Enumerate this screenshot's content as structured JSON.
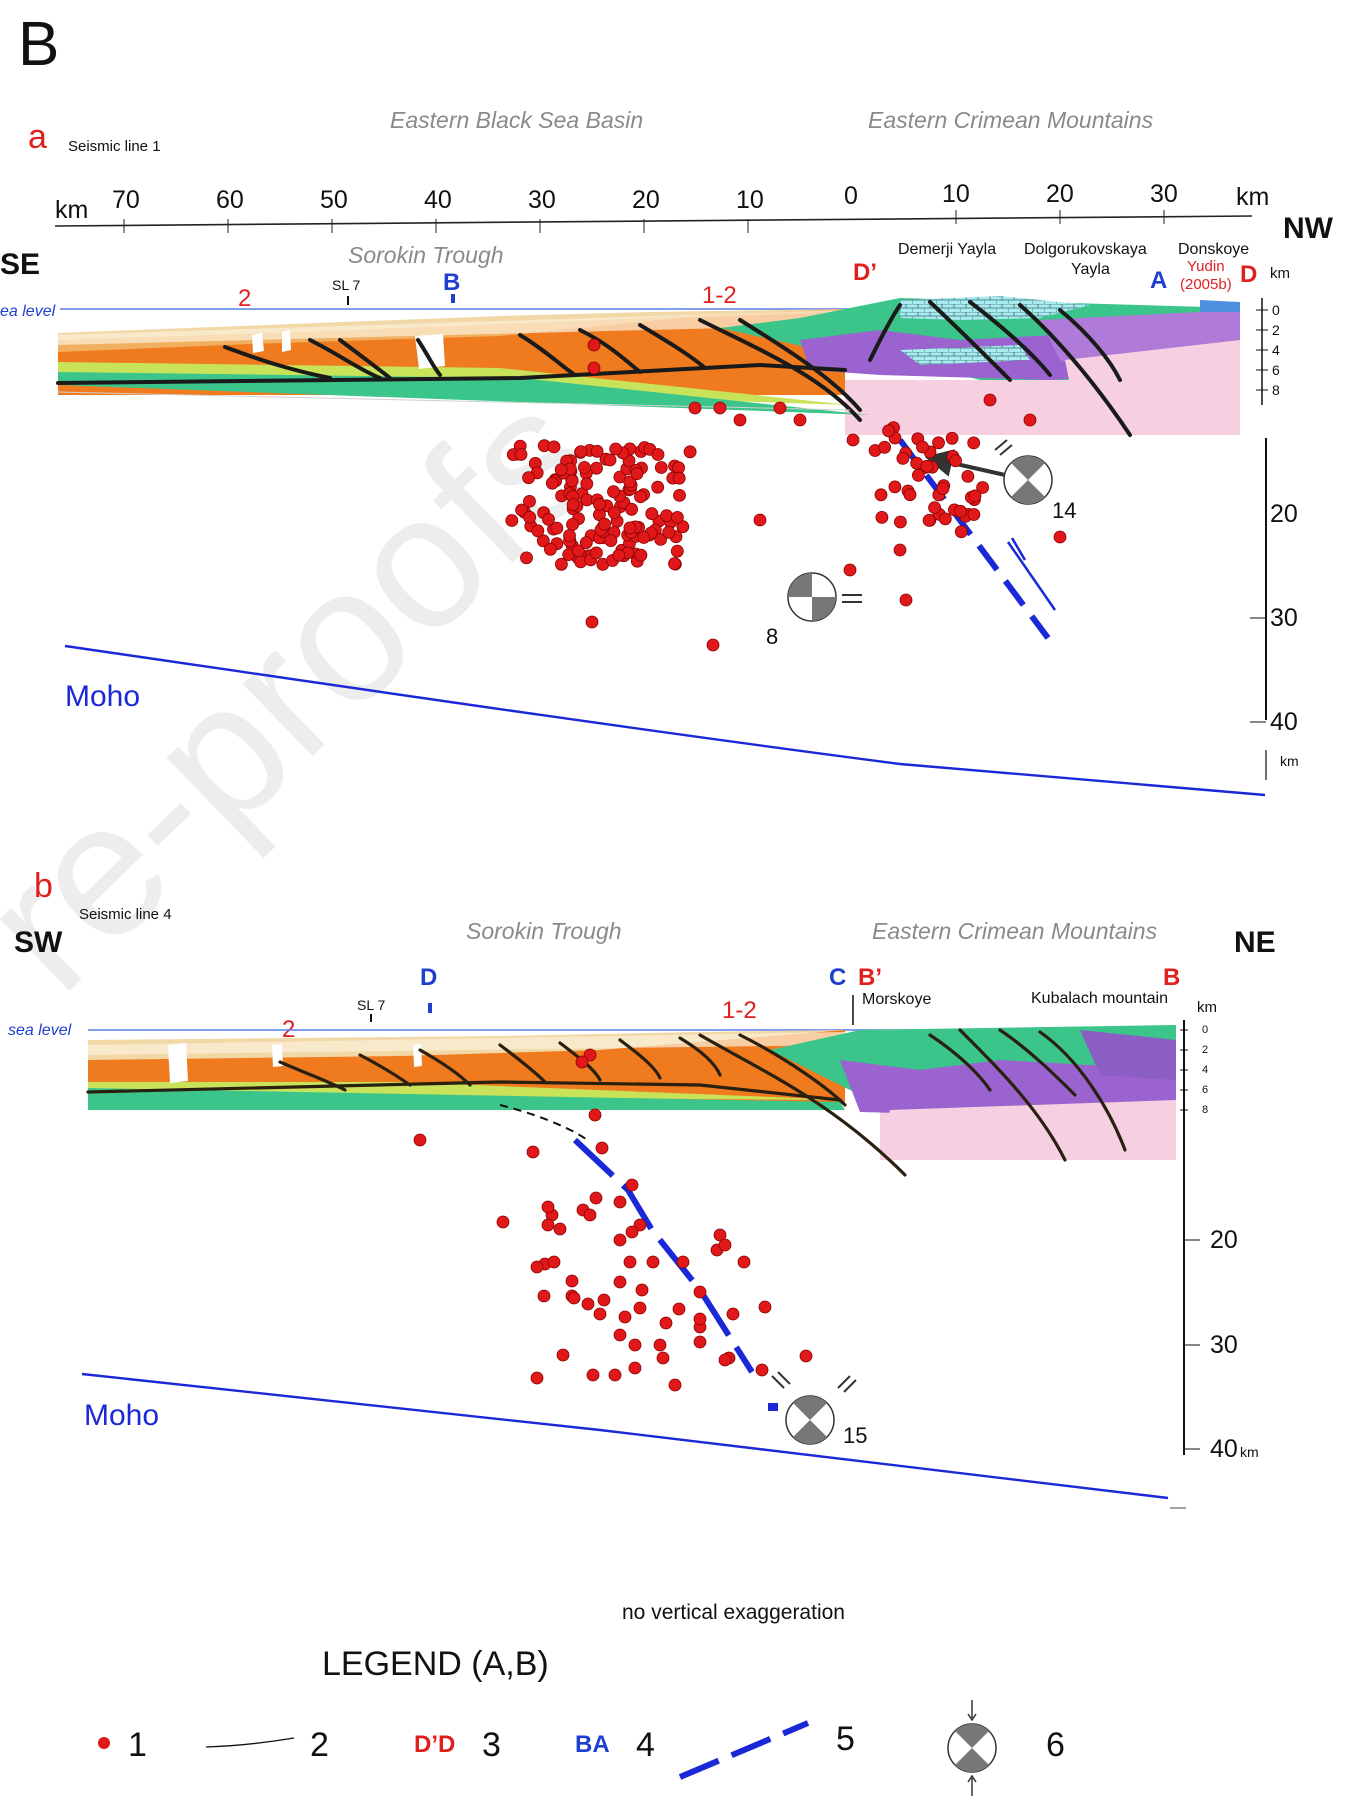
{
  "figure_letter": "B",
  "watermark": "re-proofs",
  "panel_a": {
    "letter": "a",
    "seismic_line": "Seismic line 1",
    "region_left": "Eastern Black Sea Basin",
    "region_right": "Eastern Crimean Mountains",
    "dir_left": "SE",
    "dir_right": "NW",
    "km_label": "km",
    "km_label_right": "km",
    "ticks_left": [
      "70",
      "60",
      "50",
      "40",
      "30",
      "20",
      "10"
    ],
    "tick_zero": "0",
    "ticks_right": [
      "10",
      "20",
      "30"
    ],
    "sorokin": "Sorokin Trough",
    "sl7": "SL 7",
    "mark_b": "B",
    "mark_2": "2",
    "mark_12": "1-2",
    "mark_d1": "D’",
    "demerji": "Demerji Yayla",
    "dolgor_1": "Dolgorukovskaya",
    "dolgor_2": "Yayla",
    "donskoye": "Donskoye",
    "yudin_1": "Yudin",
    "yudin_2": "(2005b)",
    "mark_a": "A",
    "mark_d": "D",
    "km_small": "km",
    "sea_level": "ea level",
    "depth_small": [
      "0",
      "2",
      "4",
      "6",
      "8"
    ],
    "depth_large": [
      "20",
      "30",
      "40"
    ],
    "depth_km_bottom": "km",
    "moho": "Moho",
    "mech_8": "8",
    "mech_14": "14"
  },
  "panel_b": {
    "letter": "b",
    "seismic_line": "Seismic line 4",
    "dir_left": "SW",
    "dir_right": "NE",
    "sorokin": "Sorokin Trough",
    "region_right": "Eastern Crimean Mountains",
    "mark_d": "D",
    "sl7": "SL 7",
    "mark_2": "2",
    "mark_12": "1-2",
    "mark_c": "C",
    "mark_b1": "B’",
    "mark_b": "B",
    "morskoye": "Morskoye",
    "kubalach": "Kubalach mountain",
    "km_small": "km",
    "sea_level": "sea level",
    "depth_small": [
      "0",
      "2",
      "4",
      "6",
      "8"
    ],
    "depth_large": [
      "20",
      "30"
    ],
    "depth_40": "40",
    "depth_40_unit": "km",
    "moho": "Moho",
    "mech_15": "15"
  },
  "note": "no vertical exaggeration",
  "legend": {
    "title": "LEGEND (A,B)",
    "n1": "1",
    "n2": "2",
    "dd": "D’D",
    "n3": "3",
    "ba": "BA",
    "n4": "4",
    "n5": "5",
    "n6": "6"
  },
  "colors": {
    "quake": "#e0181a",
    "fault_blue": "#1a28d8",
    "label_red": "#e01f1f",
    "label_blue": "#1f3fcf",
    "orange": "#f07a1e",
    "green": "#3bc58a",
    "purple": "#9a63cf",
    "pink": "#f6cfe0"
  }
}
